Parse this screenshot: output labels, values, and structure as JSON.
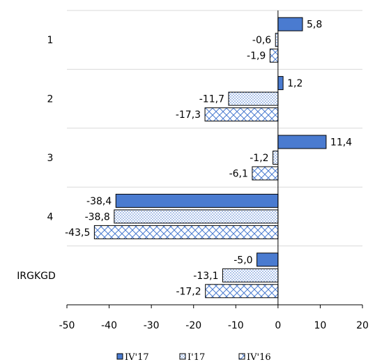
{
  "chart_data": {
    "type": "bar",
    "orientation": "horizontal",
    "categories": [
      "1",
      "2",
      "3",
      "4",
      "IRGKGD"
    ],
    "series": [
      {
        "name": "IV'17",
        "values": [
          5.8,
          1.2,
          11.4,
          -38.4,
          -5.0
        ],
        "labels": [
          "5,8",
          "1,2",
          "11,4",
          "-38,4",
          "-5,0"
        ],
        "color": "#4a7bd0",
        "pattern": "solid"
      },
      {
        "name": "I'17",
        "values": [
          -0.6,
          -11.7,
          -1.2,
          -38.8,
          -13.1
        ],
        "labels": [
          "-0,6",
          "-11,7",
          "-1,2",
          "-38,8",
          "-13,1"
        ],
        "color": "#4a7bd0",
        "pattern": "dots"
      },
      {
        "name": "IV'16",
        "values": [
          -1.9,
          -17.3,
          -6.1,
          -43.5,
          -17.2
        ],
        "labels": [
          "-1,9",
          "-17,3",
          "-6,1",
          "-43,5",
          "-17,2"
        ],
        "color": "#4a7bd0",
        "pattern": "crosshatch"
      }
    ],
    "xlim": [
      -50,
      20
    ],
    "x_ticks": [
      "-50",
      "-40",
      "-30",
      "-20",
      "-10",
      "0",
      "10",
      "20"
    ],
    "grid": "horizontal separators between categories",
    "legend": "bottom-center"
  }
}
